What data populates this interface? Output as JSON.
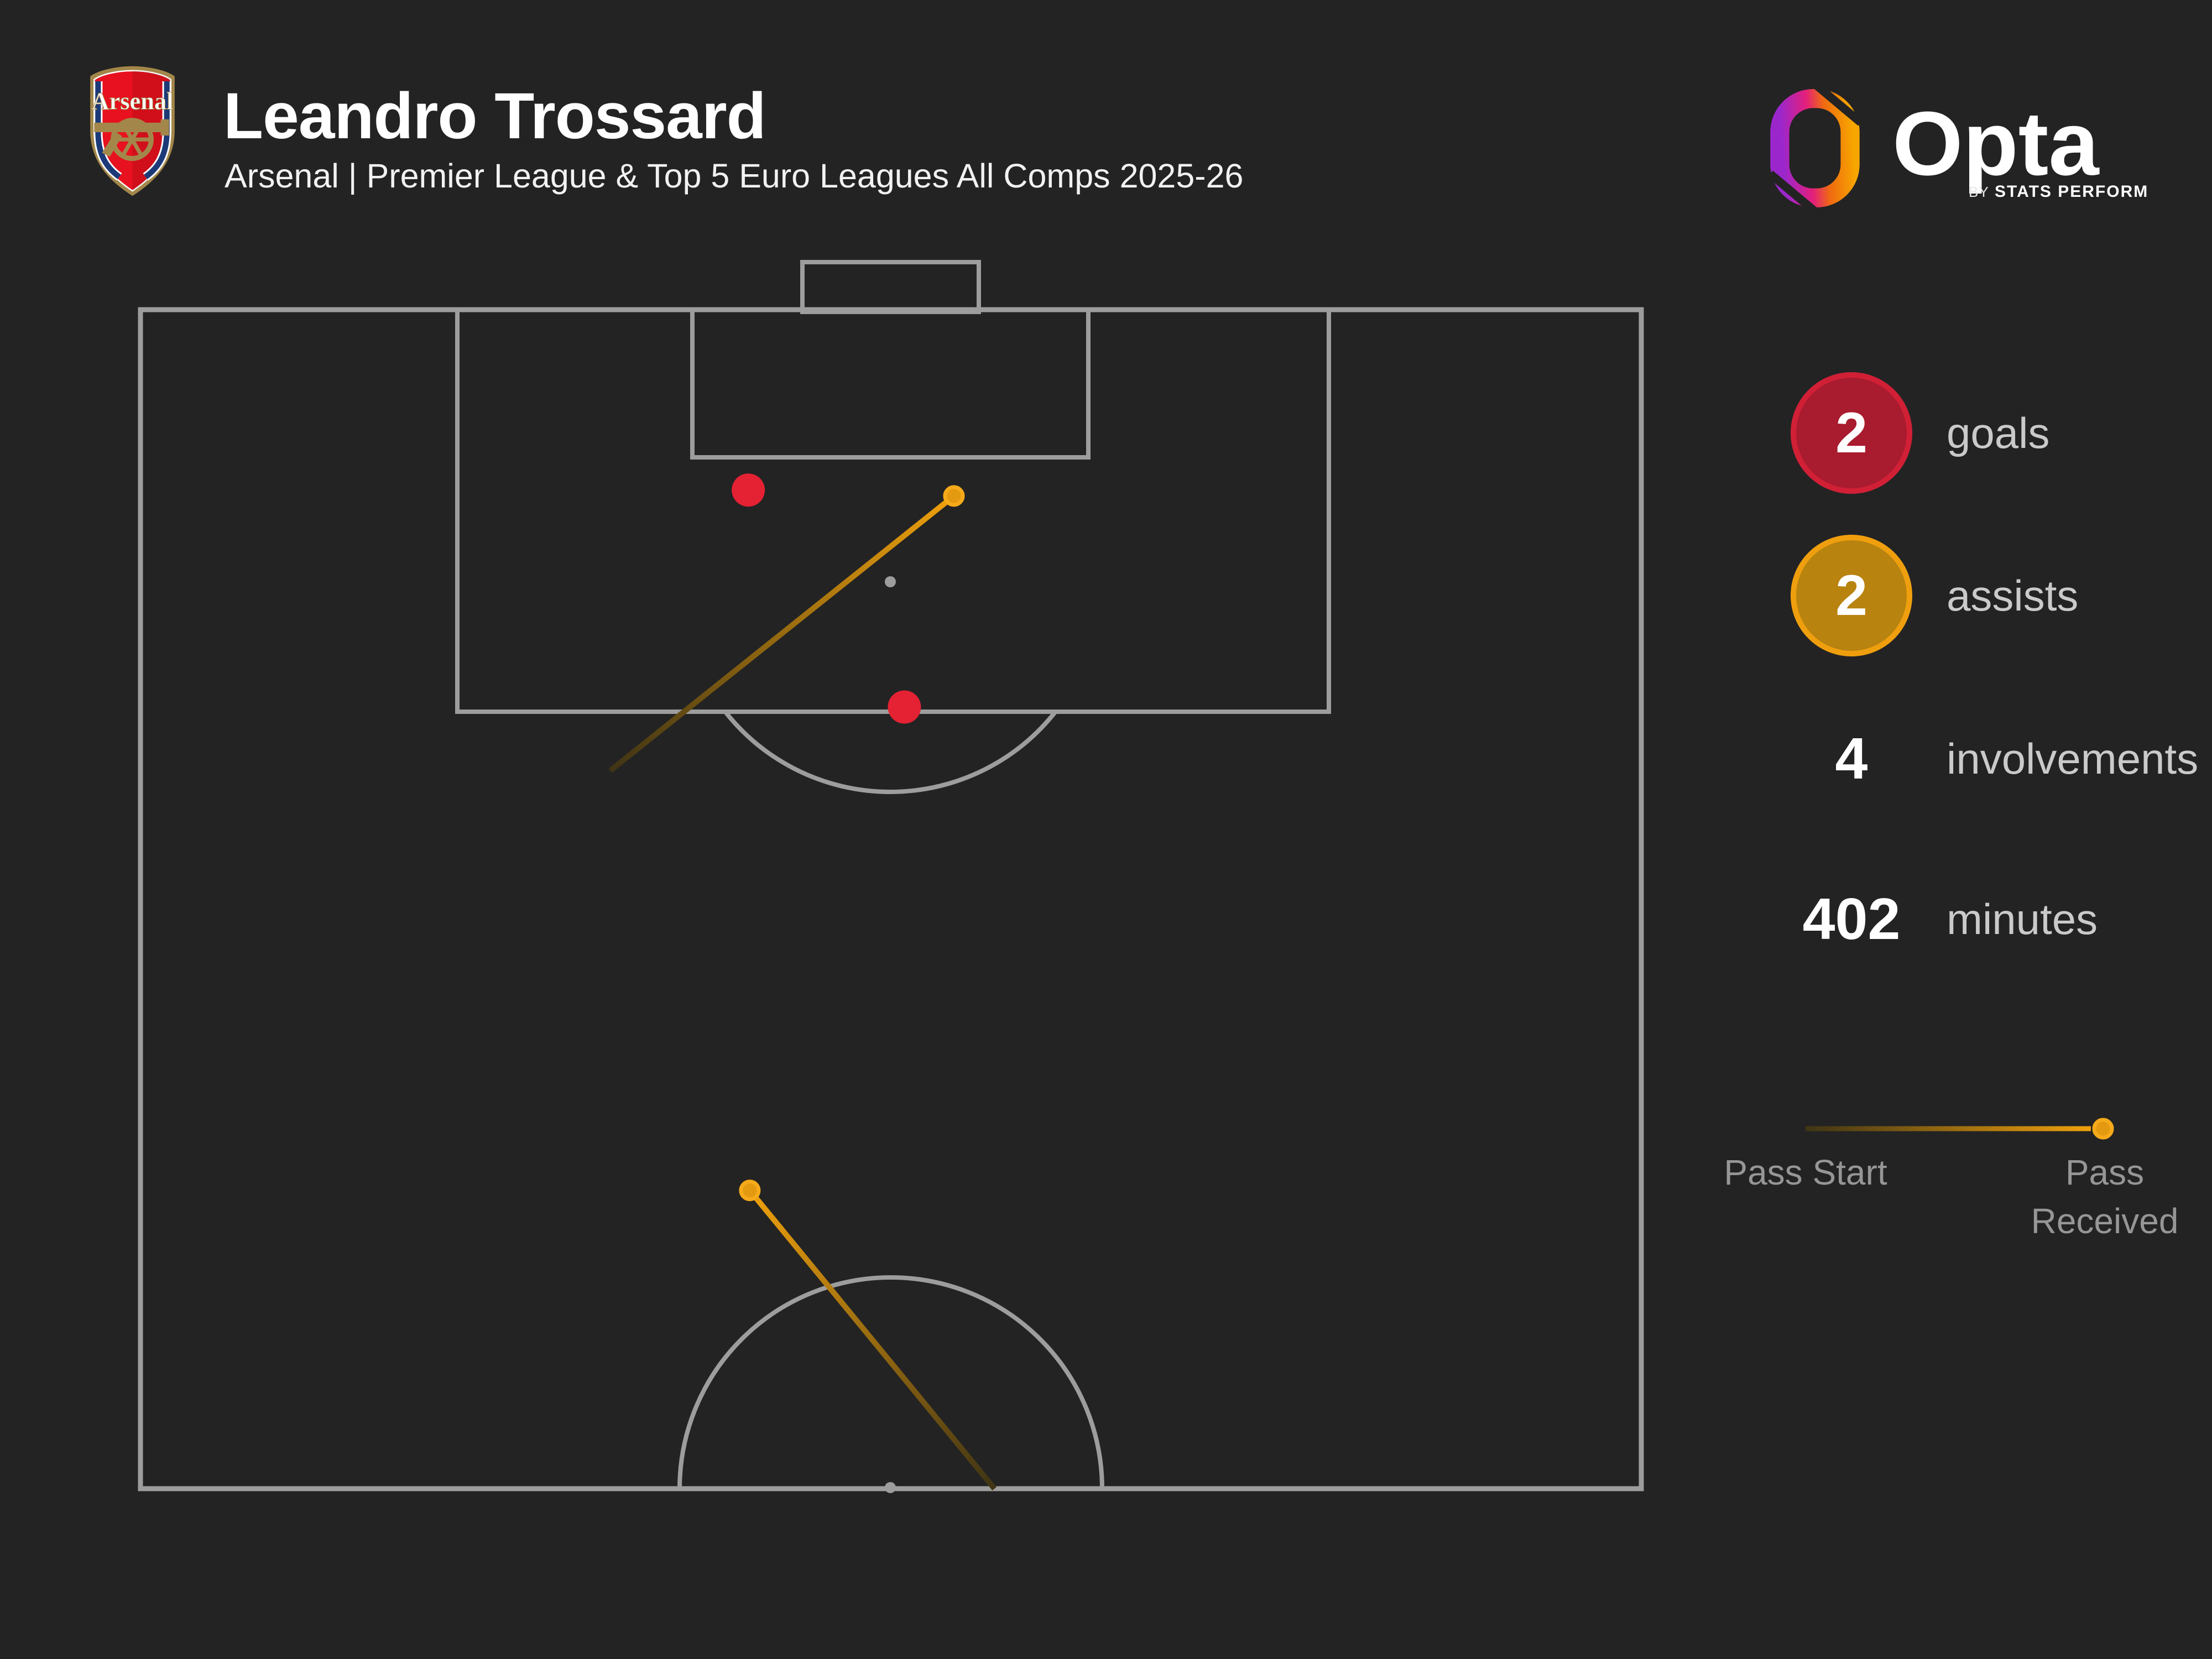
{
  "header": {
    "club": "Arsenal",
    "title": "Leandro Trossard",
    "subtitle": "Arsenal | Premier League & Top 5 Euro Leagues All Comps 2025-26"
  },
  "brand": {
    "name": "Opta",
    "byline_prefix": "BY",
    "byline": "STATS PERFORM"
  },
  "stats": [
    {
      "value": "2",
      "label": "goals",
      "marker": "goal"
    },
    {
      "value": "2",
      "label": "assists",
      "marker": "assist"
    },
    {
      "value": "4",
      "label": "involvements",
      "marker": "none"
    },
    {
      "value": "402",
      "label": "minutes",
      "marker": "none"
    }
  ],
  "legend": {
    "start_label": "Pass Start",
    "received_label": "Pass Received"
  },
  "colors": {
    "background": "#232323",
    "pitch_line": "#9d9d9d",
    "goal_red": "#e42233",
    "goal_circle_fill": "#a91b2e",
    "goal_circle_ring": "#d12036",
    "assist_circle_fill": "#b8830f",
    "assist_circle_ring": "#ef9f0e",
    "pass_orange": "#f0a10c",
    "pass_dot_fill": "#e49a10",
    "pass_dot_ring": "#f6aa1a",
    "pass_fade": "#3f3414",
    "stat_label": "#cacaca",
    "legend_label": "#969696",
    "title_color": "#ffffff"
  },
  "chart_data": {
    "type": "scatter",
    "title": "Leandro Trossard goal involvements pitch map 2025-26",
    "pitch": "attacking half, goal at top, halfway line at bottom",
    "coordinate_system": "normalized: x 0-1 across pitch width (left to right), y 0-1 from goal line (top) to halfway line (bottom)",
    "goals": [
      {
        "x": 0.405,
        "y": 0.153
      },
      {
        "x": 0.509,
        "y": 0.337
      }
    ],
    "assists": [
      {
        "start": {
          "x": 0.313,
          "y": 0.391
        },
        "received": {
          "x": 0.542,
          "y": 0.158
        }
      },
      {
        "start": {
          "x": 0.569,
          "y": 1.0
        },
        "received": {
          "x": 0.406,
          "y": 0.747
        }
      }
    ],
    "totals": {
      "goals": 2,
      "assists": 2,
      "involvements": 4,
      "minutes": 402
    }
  }
}
